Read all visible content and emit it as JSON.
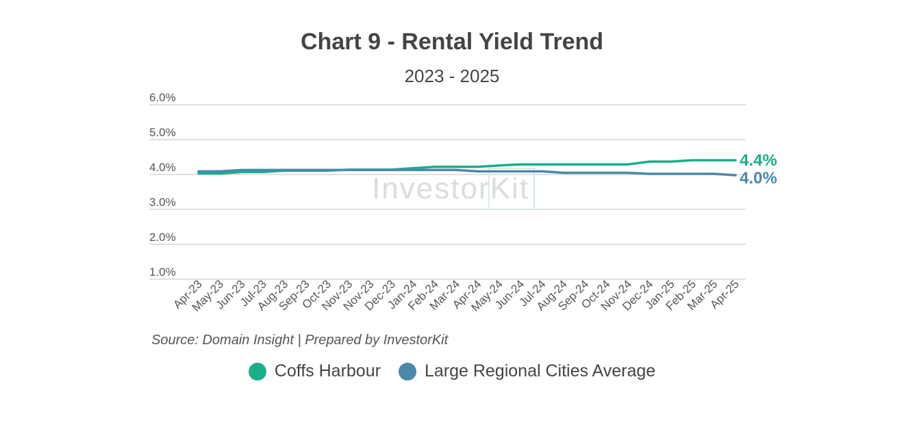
{
  "watermark": "InvestorKit",
  "source": "Source: Domain Insight | Prepared by InvestorKit",
  "chart_data": {
    "type": "line",
    "title": "Chart 9 - Rental Yield Trend",
    "subtitle": "2023 - 2025",
    "xlabel": "",
    "ylabel": "",
    "ylim": [
      1.0,
      6.0
    ],
    "y_ticks": [
      "1.0%",
      "2.0%",
      "3.0%",
      "4.0%",
      "5.0%",
      "6.0%"
    ],
    "grid": true,
    "legend_position": "bottom",
    "categories": [
      "Apr-23",
      "May-23",
      "Jun-23",
      "Jul-23",
      "Aug-23",
      "Sep-23",
      "Oct-23",
      "Nov-23",
      "Nov-23",
      "Dec-23",
      "Jan-24",
      "Feb-24",
      "Mar-24",
      "Apr-24",
      "May-24",
      "Jun-24",
      "Jul-24",
      "Aug-24",
      "Sep-24",
      "Oct-24",
      "Nov-24",
      "Dec-24",
      "Jan-25",
      "Feb-25",
      "Mar-25",
      "Apr-25"
    ],
    "series": [
      {
        "name": "Coffs Harbour",
        "color": "#1aae8a",
        "end_label": "4.4%",
        "values": [
          4.03,
          4.03,
          4.07,
          4.07,
          4.11,
          4.11,
          4.11,
          4.14,
          4.14,
          4.14,
          4.18,
          4.22,
          4.22,
          4.22,
          4.26,
          4.29,
          4.29,
          4.29,
          4.29,
          4.29,
          4.29,
          4.37,
          4.37,
          4.41,
          4.41,
          4.41
        ]
      },
      {
        "name": "Large Regional Cities Average",
        "color": "#4a89aa",
        "end_label": "4.0%",
        "values": [
          4.09,
          4.09,
          4.13,
          4.13,
          4.13,
          4.13,
          4.13,
          4.13,
          4.13,
          4.13,
          4.13,
          4.13,
          4.13,
          4.09,
          4.09,
          4.09,
          4.09,
          4.05,
          4.05,
          4.05,
          4.05,
          4.02,
          4.02,
          4.02,
          4.02,
          3.98
        ]
      }
    ]
  }
}
